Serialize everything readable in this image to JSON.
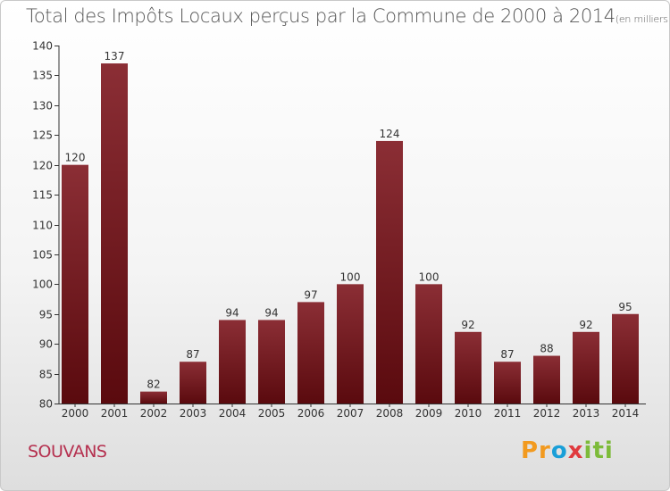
{
  "chart_data": {
    "type": "bar",
    "title": "Total des Impôts Locaux perçus par la Commune de 2000 à 2014",
    "title_unit": "(en milliers d'€)",
    "categories": [
      "2000",
      "2001",
      "2002",
      "2003",
      "2004",
      "2005",
      "2006",
      "2007",
      "2008",
      "2009",
      "2010",
      "2011",
      "2012",
      "2013",
      "2014"
    ],
    "values": [
      120,
      137,
      82,
      87,
      94,
      94,
      97,
      100,
      124,
      100,
      92,
      87,
      88,
      92,
      95
    ],
    "ylim": [
      80,
      140
    ],
    "yticks": [
      80,
      85,
      90,
      95,
      100,
      105,
      110,
      115,
      120,
      125,
      130,
      135,
      140
    ],
    "xlabel": "",
    "ylabel": "",
    "colors": {
      "bar_top": "#8b2e35",
      "bar_bottom": "#5a0a0e",
      "axis": "#333333",
      "text": "#333333"
    }
  },
  "commune": "SOUVANS",
  "logo": {
    "p": "Pr",
    "o": "o",
    "x": "x",
    "i": "iti"
  }
}
